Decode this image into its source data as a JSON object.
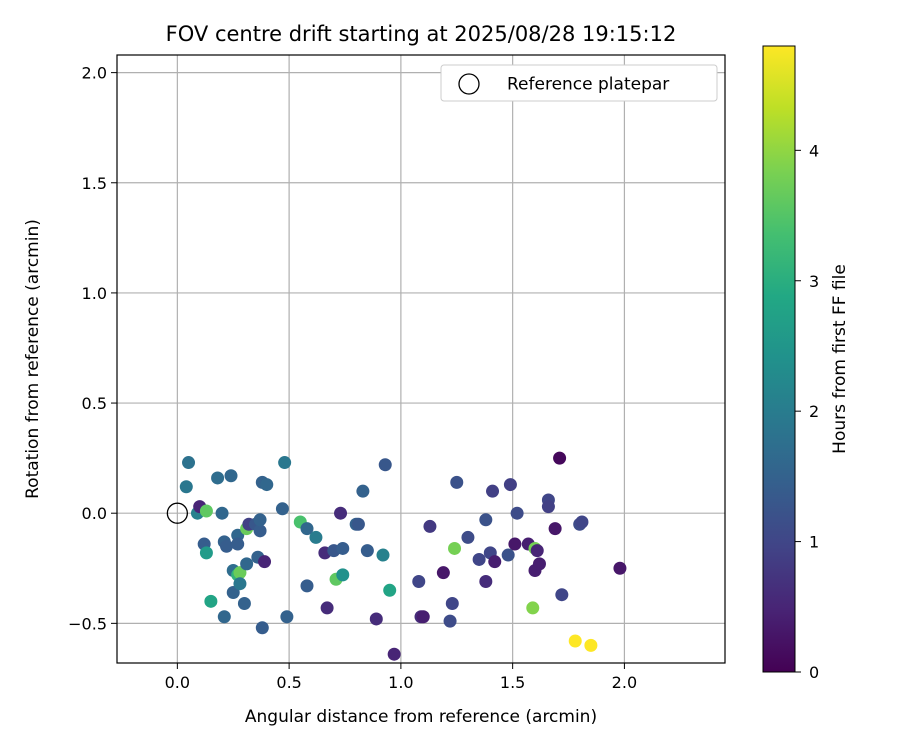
{
  "chart_data": {
    "type": "scatter",
    "title": "FOV centre drift starting at 2025/08/28 19:15:12",
    "xlabel": "Angular distance from reference (arcmin)",
    "ylabel": "Rotation from reference (arcmin)",
    "xlim": [
      -0.27,
      2.45
    ],
    "ylim": [
      -0.68,
      2.08
    ],
    "xticks": [
      0.0,
      0.5,
      1.0,
      1.5,
      2.0
    ],
    "xtick_labels": [
      "0.0",
      "0.5",
      "1.0",
      "1.5",
      "2.0"
    ],
    "yticks": [
      -0.5,
      0.0,
      0.5,
      1.0,
      1.5,
      2.0
    ],
    "ytick_labels": [
      "−0.5",
      "0.0",
      "0.5",
      "1.0",
      "1.5",
      "2.0"
    ],
    "grid": true,
    "legend": {
      "position": "top-right",
      "entries": [
        "Reference platepar"
      ]
    },
    "reference_point": {
      "x": 0.0,
      "y": 0.0
    },
    "colorbar": {
      "label": "Hours from first FF file",
      "colormap": "viridis",
      "range": [
        0,
        4.8
      ],
      "ticks": [
        0,
        1,
        2,
        3,
        4
      ],
      "tick_labels": [
        "0",
        "1",
        "2",
        "3",
        "4"
      ]
    },
    "points": [
      {
        "x": 0.05,
        "y": 0.23,
        "h": 1.8
      },
      {
        "x": 0.04,
        "y": 0.12,
        "h": 1.9
      },
      {
        "x": 0.09,
        "y": 0.0,
        "h": 2.1
      },
      {
        "x": 0.1,
        "y": 0.03,
        "h": 0.5
      },
      {
        "x": 0.13,
        "y": 0.01,
        "h": 3.6
      },
      {
        "x": 0.12,
        "y": -0.14,
        "h": 1.4
      },
      {
        "x": 0.13,
        "y": -0.18,
        "h": 2.6
      },
      {
        "x": 0.15,
        "y": -0.4,
        "h": 2.8
      },
      {
        "x": 0.18,
        "y": 0.16,
        "h": 1.7
      },
      {
        "x": 0.2,
        "y": 0.0,
        "h": 1.6
      },
      {
        "x": 0.21,
        "y": -0.13,
        "h": 1.5
      },
      {
        "x": 0.21,
        "y": -0.47,
        "h": 1.6
      },
      {
        "x": 0.22,
        "y": -0.15,
        "h": 1.4
      },
      {
        "x": 0.24,
        "y": 0.17,
        "h": 1.6
      },
      {
        "x": 0.25,
        "y": -0.26,
        "h": 1.7
      },
      {
        "x": 0.25,
        "y": -0.36,
        "h": 1.5
      },
      {
        "x": 0.27,
        "y": -0.1,
        "h": 1.6
      },
      {
        "x": 0.27,
        "y": -0.14,
        "h": 1.4
      },
      {
        "x": 0.27,
        "y": -0.28,
        "h": 3.1
      },
      {
        "x": 0.28,
        "y": -0.27,
        "h": 3.7
      },
      {
        "x": 0.28,
        "y": -0.32,
        "h": 1.9
      },
      {
        "x": 0.3,
        "y": -0.41,
        "h": 1.5
      },
      {
        "x": 0.31,
        "y": -0.23,
        "h": 1.6
      },
      {
        "x": 0.31,
        "y": -0.07,
        "h": 3.7
      },
      {
        "x": 0.32,
        "y": -0.05,
        "h": 0.9
      },
      {
        "x": 0.35,
        "y": -0.05,
        "h": 1.3
      },
      {
        "x": 0.36,
        "y": -0.2,
        "h": 1.5
      },
      {
        "x": 0.37,
        "y": -0.08,
        "h": 1.4
      },
      {
        "x": 0.37,
        "y": -0.03,
        "h": 1.5
      },
      {
        "x": 0.38,
        "y": 0.14,
        "h": 1.5
      },
      {
        "x": 0.38,
        "y": -0.52,
        "h": 1.4
      },
      {
        "x": 0.39,
        "y": -0.22,
        "h": 0.5
      },
      {
        "x": 0.4,
        "y": 0.13,
        "h": 1.6
      },
      {
        "x": 0.47,
        "y": 0.02,
        "h": 1.5
      },
      {
        "x": 0.48,
        "y": 0.23,
        "h": 1.9
      },
      {
        "x": 0.49,
        "y": -0.47,
        "h": 1.5
      },
      {
        "x": 0.55,
        "y": -0.04,
        "h": 3.4
      },
      {
        "x": 0.58,
        "y": -0.07,
        "h": 1.6
      },
      {
        "x": 0.58,
        "y": -0.33,
        "h": 1.4
      },
      {
        "x": 0.62,
        "y": -0.11,
        "h": 2.0
      },
      {
        "x": 0.66,
        "y": -0.18,
        "h": 0.6
      },
      {
        "x": 0.67,
        "y": -0.43,
        "h": 0.6
      },
      {
        "x": 0.7,
        "y": -0.17,
        "h": 1.3
      },
      {
        "x": 0.71,
        "y": -0.3,
        "h": 3.6
      },
      {
        "x": 0.73,
        "y": 0.0,
        "h": 0.6
      },
      {
        "x": 0.74,
        "y": -0.16,
        "h": 1.4
      },
      {
        "x": 0.74,
        "y": -0.28,
        "h": 2.4
      },
      {
        "x": 0.8,
        "y": -0.05,
        "h": 1.5
      },
      {
        "x": 0.81,
        "y": -0.05,
        "h": 1.3
      },
      {
        "x": 0.83,
        "y": 0.1,
        "h": 1.5
      },
      {
        "x": 0.85,
        "y": -0.17,
        "h": 1.4
      },
      {
        "x": 0.89,
        "y": -0.48,
        "h": 0.6
      },
      {
        "x": 0.92,
        "y": -0.19,
        "h": 2.1
      },
      {
        "x": 0.93,
        "y": 0.22,
        "h": 1.3
      },
      {
        "x": 0.95,
        "y": -0.35,
        "h": 2.8
      },
      {
        "x": 0.97,
        "y": -0.64,
        "h": 0.5
      },
      {
        "x": 1.08,
        "y": -0.31,
        "h": 1.0
      },
      {
        "x": 1.09,
        "y": -0.47,
        "h": 0.6
      },
      {
        "x": 1.1,
        "y": -0.47,
        "h": 0.4
      },
      {
        "x": 1.13,
        "y": -0.06,
        "h": 0.8
      },
      {
        "x": 1.19,
        "y": -0.27,
        "h": 0.3
      },
      {
        "x": 1.22,
        "y": -0.49,
        "h": 1.1
      },
      {
        "x": 1.23,
        "y": -0.41,
        "h": 1.0
      },
      {
        "x": 1.24,
        "y": -0.16,
        "h": 3.8
      },
      {
        "x": 1.25,
        "y": 0.14,
        "h": 1.2
      },
      {
        "x": 1.3,
        "y": -0.11,
        "h": 1.1
      },
      {
        "x": 1.35,
        "y": -0.21,
        "h": 1.0
      },
      {
        "x": 1.38,
        "y": -0.03,
        "h": 1.2
      },
      {
        "x": 1.38,
        "y": -0.31,
        "h": 0.6
      },
      {
        "x": 1.4,
        "y": -0.18,
        "h": 1.0
      },
      {
        "x": 1.41,
        "y": 0.1,
        "h": 0.9
      },
      {
        "x": 1.42,
        "y": -0.22,
        "h": 0.4
      },
      {
        "x": 1.48,
        "y": -0.19,
        "h": 1.2
      },
      {
        "x": 1.49,
        "y": 0.13,
        "h": 0.9
      },
      {
        "x": 1.51,
        "y": -0.14,
        "h": 0.3
      },
      {
        "x": 1.52,
        "y": 0.0,
        "h": 1.1
      },
      {
        "x": 1.57,
        "y": -0.14,
        "h": 0.4
      },
      {
        "x": 1.59,
        "y": -0.43,
        "h": 3.9
      },
      {
        "x": 1.6,
        "y": -0.16,
        "h": 3.8
      },
      {
        "x": 1.6,
        "y": -0.26,
        "h": 0.4
      },
      {
        "x": 1.61,
        "y": -0.17,
        "h": 0.5
      },
      {
        "x": 1.62,
        "y": -0.23,
        "h": 0.4
      },
      {
        "x": 1.66,
        "y": 0.06,
        "h": 1.0
      },
      {
        "x": 1.66,
        "y": 0.03,
        "h": 0.9
      },
      {
        "x": 1.69,
        "y": -0.07,
        "h": 0.3
      },
      {
        "x": 1.71,
        "y": 0.25,
        "h": 0.1
      },
      {
        "x": 1.72,
        "y": -0.37,
        "h": 1.0
      },
      {
        "x": 1.78,
        "y": -0.58,
        "h": 4.8
      },
      {
        "x": 1.8,
        "y": -0.05,
        "h": 1.1
      },
      {
        "x": 1.81,
        "y": -0.04,
        "h": 1.0
      },
      {
        "x": 1.85,
        "y": -0.6,
        "h": 4.8
      },
      {
        "x": 1.98,
        "y": -0.25,
        "h": 0.3
      }
    ]
  }
}
